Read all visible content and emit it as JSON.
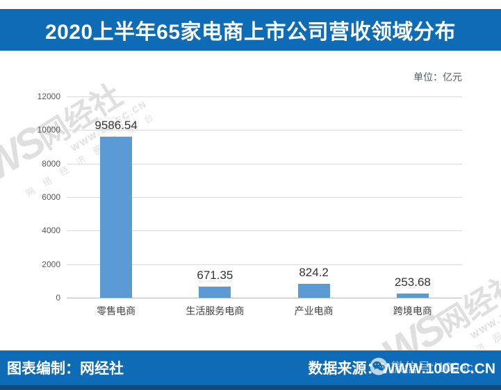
{
  "header": {
    "title": "2020上半年65家电商上市公司营收领域分布"
  },
  "unit_label": "单位：亿元",
  "chart_data": {
    "type": "bar",
    "title": "2020上半年65家电商上市公司营收领域分布",
    "categories": [
      "零售电商",
      "生活服务电商",
      "产业电商",
      "跨境电商"
    ],
    "values": [
      9586.54,
      671.35,
      824.2,
      253.68
    ],
    "value_labels": [
      "9586.54",
      "671.35",
      "824.2",
      "253.68"
    ],
    "xlabel": "",
    "ylabel": "",
    "unit": "单位：亿元",
    "ylim": [
      0,
      12000
    ],
    "yticks": [
      0,
      2000,
      4000,
      6000,
      8000,
      10000,
      12000
    ],
    "grid": true,
    "legend": "none",
    "bar_color": "#5b9bd5"
  },
  "watermark": {
    "logo_prefix": "WS",
    "logo_name": "网经社",
    "url": "WWW.100EC.CN",
    "slogan": "网 络 经 济 服 务 平 台"
  },
  "footer": {
    "left": "图表编制：网经社",
    "right": "数据来源：WWW.100EC.CN",
    "overlay": "微信号:i100ec"
  },
  "colors": {
    "banner_blue": "#0e6bb5",
    "bar_blue": "#5b9bd5",
    "gridline_gray": "#d9d9d9",
    "bottom_strip_navy": "#164a76",
    "unit_label_teal_gray": "#46626a"
  }
}
